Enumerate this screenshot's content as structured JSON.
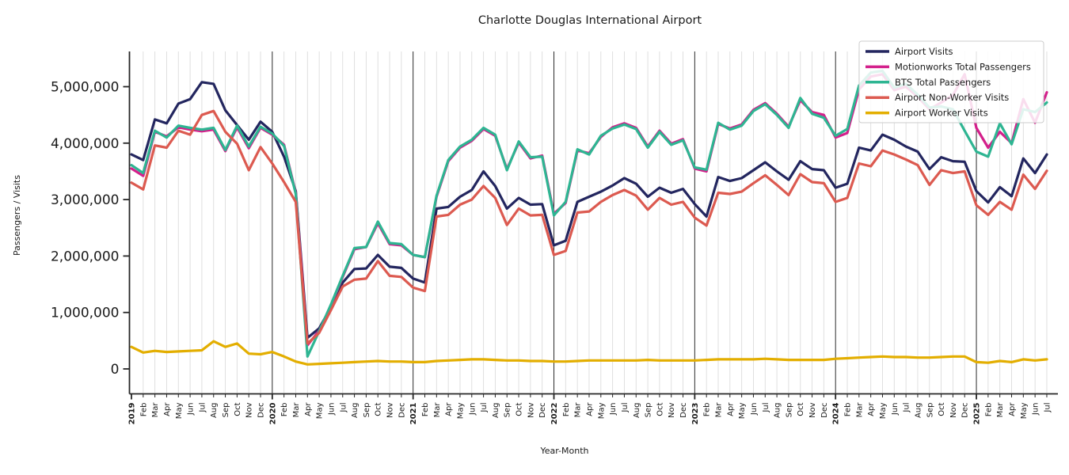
{
  "chart_data": {
    "type": "line",
    "title": "Charlotte Douglas International Airport",
    "xlabel": "Year-Month",
    "ylabel": "Passengers / Visits",
    "unit": "millions_of_passengers",
    "ylim": [
      0,
      5.6
    ],
    "grid": "vertical-monthly-gray-with-black-year-lines",
    "legend_position": "upper right",
    "yticks": {
      "values": [
        0,
        1,
        2,
        3,
        4,
        5
      ],
      "labels": [
        "0",
        "1,000,000",
        "2,000,000",
        "3,000,000",
        "4,000,000",
        "5,000,000"
      ]
    },
    "x": [
      "2019",
      "Feb",
      "Mar",
      "Apr",
      "May",
      "Jun",
      "Jul",
      "Aug",
      "Sep",
      "Oct",
      "Nov",
      "Dec",
      "2020",
      "Feb",
      "Mar",
      "Apr",
      "May",
      "Jun",
      "Jul",
      "Aug",
      "Sep",
      "Oct",
      "Nov",
      "Dec",
      "2021",
      "Feb",
      "Mar",
      "Apr",
      "May",
      "Jun",
      "Jul",
      "Aug",
      "Sep",
      "Oct",
      "Nov",
      "Dec",
      "2022",
      "Feb",
      "Mar",
      "Apr",
      "May",
      "Jun",
      "Jul",
      "Aug",
      "Sep",
      "Oct",
      "Nov",
      "Dec",
      "2023",
      "Feb",
      "Mar",
      "Apr",
      "May",
      "Jun",
      "Jul",
      "Aug",
      "Sep",
      "Oct",
      "Nov",
      "Dec",
      "2024",
      "Feb",
      "Mar",
      "Apr",
      "May",
      "Jun",
      "Jul",
      "Aug",
      "Sep",
      "Oct",
      "Nov",
      "Dec",
      "2025",
      "Feb",
      "Mar",
      "Apr",
      "May",
      "Jun",
      "Jul"
    ],
    "series": [
      {
        "name": "Airport Visits",
        "color": "#23265f",
        "values": [
          3.8,
          3.7,
          4.42,
          4.35,
          4.7,
          4.78,
          5.08,
          5.05,
          4.58,
          4.32,
          4.06,
          4.38,
          4.2,
          3.76,
          3.15,
          0.55,
          0.72,
          1.09,
          1.53,
          1.77,
          1.78,
          2.02,
          1.81,
          1.79,
          1.6,
          1.53,
          2.84,
          2.87,
          3.05,
          3.17,
          3.5,
          3.24,
          2.84,
          3.03,
          2.91,
          2.92,
          2.19,
          2.27,
          2.96,
          3.05,
          3.14,
          3.25,
          3.38,
          3.28,
          3.05,
          3.21,
          3.12,
          3.19,
          2.92,
          2.7,
          3.4,
          3.33,
          3.38,
          3.52,
          3.66,
          3.5,
          3.35,
          3.68,
          3.54,
          3.52,
          3.21,
          3.28,
          3.92,
          3.87,
          4.15,
          4.06,
          3.94,
          3.85,
          3.54,
          3.75,
          3.68,
          3.67,
          3.15,
          2.95,
          3.22,
          3.06,
          3.73,
          3.47,
          3.8
        ]
      },
      {
        "name": "Motionworks Total Passengers",
        "color": "#d3208b",
        "values": [
          3.55,
          3.42,
          4.2,
          4.12,
          4.28,
          4.24,
          4.21,
          4.24,
          3.86,
          4.28,
          3.91,
          4.27,
          4.15,
          3.97,
          3.12,
          0.42,
          0.68,
          1.12,
          1.63,
          2.12,
          2.16,
          2.58,
          2.21,
          2.19,
          2.02,
          1.98,
          3.05,
          3.68,
          3.92,
          4.04,
          4.25,
          4.13,
          3.54,
          4.01,
          3.73,
          3.78,
          2.75,
          2.94,
          3.87,
          3.82,
          4.11,
          4.28,
          4.35,
          4.27,
          3.94,
          4.22,
          3.99,
          4.07,
          3.55,
          3.5,
          4.34,
          4.26,
          4.33,
          4.59,
          4.71,
          4.52,
          4.29,
          4.76,
          4.55,
          4.5,
          4.1,
          4.18,
          4.95,
          5.18,
          5.22,
          4.94,
          5.0,
          4.82,
          4.6,
          4.72,
          4.85,
          5.22,
          4.27,
          3.92,
          4.2,
          4.0,
          4.78,
          4.36,
          4.9
        ]
      },
      {
        "name": "BTS Total Passengers",
        "color": "#2eb592",
        "values": [
          3.61,
          3.47,
          4.22,
          4.1,
          4.31,
          4.27,
          4.24,
          4.27,
          3.88,
          4.31,
          3.94,
          4.29,
          4.17,
          3.95,
          3.1,
          0.22,
          0.67,
          1.14,
          1.65,
          2.14,
          2.16,
          2.61,
          2.23,
          2.21,
          2.02,
          1.98,
          3.07,
          3.7,
          3.94,
          4.06,
          4.27,
          4.15,
          3.52,
          4.03,
          3.75,
          3.76,
          2.72,
          2.96,
          3.89,
          3.8,
          4.13,
          4.26,
          4.33,
          4.25,
          3.92,
          4.2,
          3.97,
          4.05,
          3.57,
          3.53,
          4.36,
          4.24,
          4.31,
          4.57,
          4.69,
          4.5,
          4.27,
          4.8,
          4.52,
          4.45,
          4.13,
          4.25,
          5.02,
          5.25,
          5.28,
          4.98,
          5.05,
          4.86,
          4.63,
          4.65,
          4.6,
          4.22,
          3.85,
          3.76,
          4.35,
          3.98,
          4.6,
          4.55,
          4.72
        ]
      },
      {
        "name": "Airport Non-Worker Visits",
        "color": "#dc5a50",
        "values": [
          3.3,
          3.18,
          3.96,
          3.92,
          4.22,
          4.15,
          4.5,
          4.57,
          4.2,
          3.99,
          3.52,
          3.93,
          3.64,
          3.31,
          2.96,
          0.45,
          0.64,
          1.04,
          1.46,
          1.58,
          1.6,
          1.91,
          1.65,
          1.63,
          1.44,
          1.38,
          2.7,
          2.73,
          2.91,
          3.0,
          3.24,
          3.03,
          2.55,
          2.84,
          2.72,
          2.73,
          2.02,
          2.09,
          2.77,
          2.79,
          2.96,
          3.08,
          3.17,
          3.07,
          2.82,
          3.03,
          2.91,
          2.96,
          2.68,
          2.54,
          3.12,
          3.1,
          3.14,
          3.29,
          3.43,
          3.26,
          3.08,
          3.45,
          3.31,
          3.29,
          2.96,
          3.03,
          3.64,
          3.59,
          3.87,
          3.8,
          3.71,
          3.61,
          3.26,
          3.52,
          3.47,
          3.5,
          2.9,
          2.73,
          2.96,
          2.82,
          3.44,
          3.19,
          3.51
        ]
      },
      {
        "name": "Airport Worker Visits",
        "color": "#e3ae00",
        "values": [
          0.39,
          0.29,
          0.32,
          0.3,
          0.31,
          0.32,
          0.33,
          0.49,
          0.39,
          0.45,
          0.27,
          0.26,
          0.3,
          0.22,
          0.13,
          0.08,
          0.09,
          0.1,
          0.11,
          0.12,
          0.13,
          0.14,
          0.13,
          0.13,
          0.12,
          0.12,
          0.14,
          0.15,
          0.16,
          0.17,
          0.17,
          0.16,
          0.15,
          0.15,
          0.14,
          0.14,
          0.13,
          0.13,
          0.14,
          0.15,
          0.15,
          0.15,
          0.15,
          0.15,
          0.16,
          0.15,
          0.15,
          0.15,
          0.15,
          0.16,
          0.17,
          0.17,
          0.17,
          0.17,
          0.18,
          0.17,
          0.16,
          0.16,
          0.16,
          0.16,
          0.18,
          0.19,
          0.2,
          0.21,
          0.22,
          0.21,
          0.21,
          0.2,
          0.2,
          0.21,
          0.22,
          0.22,
          0.12,
          0.11,
          0.14,
          0.12,
          0.17,
          0.15,
          0.17
        ]
      }
    ],
    "style": {
      "background": "#ffffff",
      "month_gridline_color": "#dcdcdc",
      "year_line_color": "#2b2b2b",
      "axis_color": "#262626",
      "text_color": "#1a1a1a",
      "legend_border_color": "#cccccc",
      "legend_background": "#ffffff"
    }
  }
}
